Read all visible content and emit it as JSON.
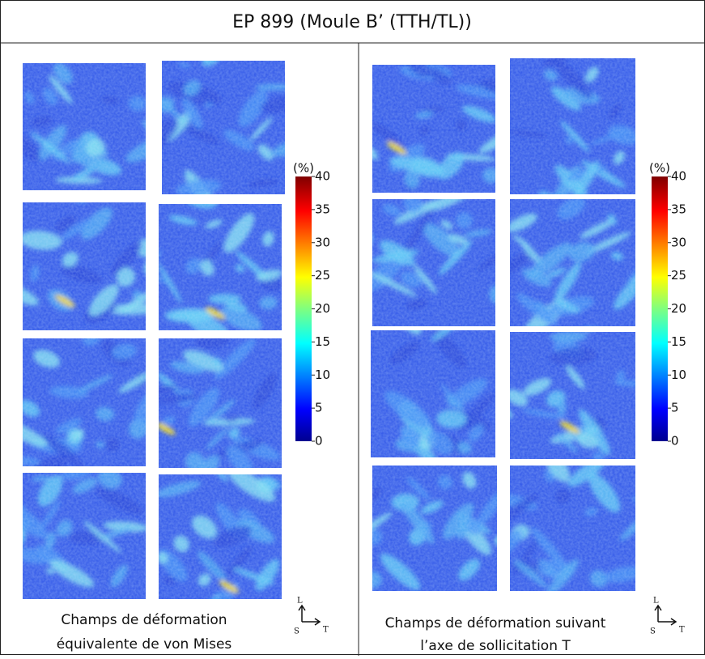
{
  "header": {
    "title": "EP 899 (Moule B’ (TTH/TL))"
  },
  "panels": [
    {
      "caption": [
        "Champs de déformation",
        "équivalente de von Mises"
      ],
      "colorbar": {
        "unit": "(%)",
        "lim": [
          0,
          40
        ],
        "ticks": [
          0,
          5,
          10,
          15,
          20,
          25,
          30,
          35,
          40
        ]
      },
      "axes": {
        "up": "L",
        "origin": "S",
        "right": "T"
      }
    },
    {
      "caption": [
        "Champs de déformation suivant",
        "l’axe de sollicitation T"
      ],
      "colorbar": {
        "unit": "(%)",
        "lim": [
          0,
          40
        ],
        "ticks": [
          0,
          5,
          10,
          15,
          20,
          25,
          30,
          35,
          40
        ]
      },
      "axes": {
        "up": "L",
        "origin": "S",
        "right": "T"
      }
    }
  ]
}
